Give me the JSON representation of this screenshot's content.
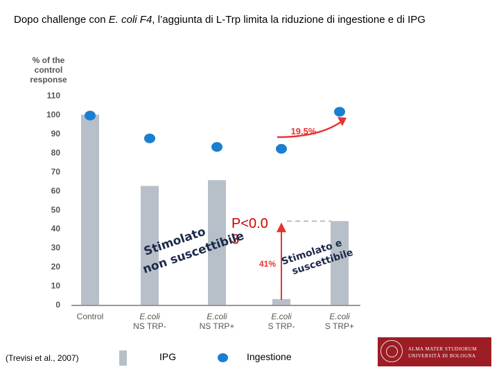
{
  "title": {
    "before": "Dopo challenge con ",
    "italic": "E. coli F4",
    "after": ", l’aggiunta di L-Trp limita la riduzione di ingestione e di IPG"
  },
  "chart_data": {
    "type": "bar",
    "ylabel": "% of the control response",
    "ylim": [
      0,
      110
    ],
    "yticks": [
      "0",
      "10",
      "20",
      "30",
      "40",
      "50",
      "60",
      "70",
      "80",
      "90",
      "100",
      "110"
    ],
    "categories": [
      [
        "Control"
      ],
      [
        "E.coli",
        "NS TRP-"
      ],
      [
        "E.coli",
        "NS TRP+"
      ],
      [
        "E.coli",
        "S TRP-"
      ],
      [
        "E.coli",
        "S TRP+"
      ]
    ],
    "series": [
      {
        "name": "IPG",
        "kind": "bar",
        "color": "#b7bfc8",
        "values": [
          100,
          62.5,
          65.5,
          3,
          44
        ]
      },
      {
        "name": "Ingestione",
        "kind": "dot",
        "color": "#1a7fd1",
        "values": [
          99.5,
          87.5,
          83,
          82,
          101.5
        ]
      }
    ],
    "annotations": {
      "increase_label": "19.5%",
      "decrease_label": "41%",
      "increase_color": "#e8322f",
      "decrease_color": "#e8322f",
      "dash_level": 44
    }
  },
  "pvalue": {
    "line1": "P<0.0",
    "line2": "3"
  },
  "stim_left": {
    "line1": "Stimolato",
    "line2": "non suscettibile"
  },
  "stim_right": {
    "line1": "Stimolato e",
    "line2": "suscettibile"
  },
  "legend": {
    "ipg": "IPG",
    "ingestione": "Ingestione"
  },
  "citation": "(Trevisi et al., 2007)",
  "logo": {
    "line1": "ALMA MATER STUDIORUM",
    "line2": "UNIVERSITÀ DI BOLOGNA"
  }
}
